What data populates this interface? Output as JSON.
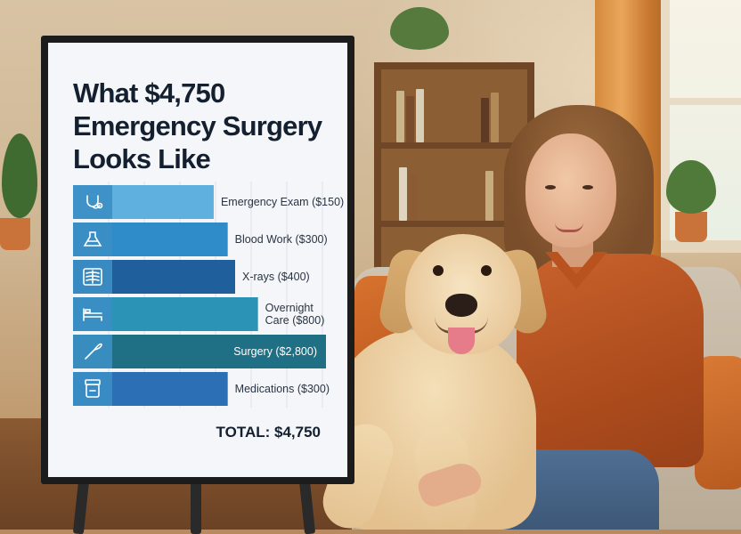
{
  "chart_data": {
    "type": "bar",
    "orientation": "horizontal",
    "title": "What $4,750 Emergency Surgery Looks Like",
    "categories": [
      "Emergency Exam ($150)",
      "Blood Work ($300)",
      "X-rays ($400)",
      "Overnight Care ($800)",
      "Surgery ($2,800)",
      "Medications ($300)"
    ],
    "values": [
      150,
      300,
      400,
      800,
      2800,
      300
    ],
    "icons": [
      "stethoscope-icon",
      "flask-icon",
      "xray-ribcage-icon",
      "bed-icon",
      "scalpel-icon",
      "pill-bottle-icon"
    ],
    "colors": [
      "#5fb0de",
      "#2f8cc9",
      "#1f5f9c",
      "#2b93b5",
      "#1f6f85",
      "#2c6fb5"
    ],
    "icon_box_color": "#3b8fc4",
    "grid": true,
    "legend": "none",
    "total_label": "TOTAL: $4,750"
  }
}
